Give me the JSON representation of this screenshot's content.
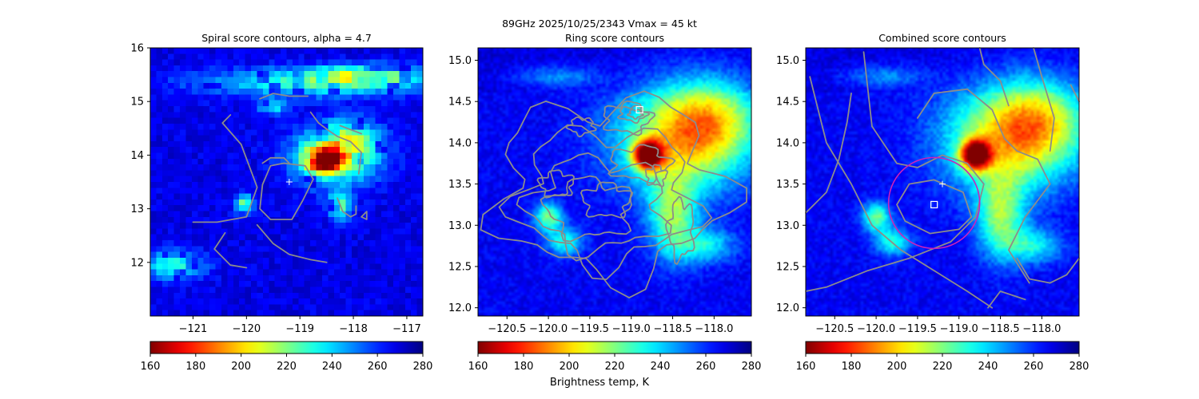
{
  "figure": {
    "suptitle": "89GHz  2025/10/25/2343    Vmax = 45 kt",
    "colorbar_label": "Brightness temp, K"
  },
  "colors": {
    "contour": "#8c8c8c",
    "center_marker": "#ffffff",
    "circle": "#cc22bb"
  },
  "chart_data": [
    {
      "type": "heatmap",
      "title": "Spiral score contours, alpha =  4.7",
      "xlim": [
        -121.8,
        -116.7
      ],
      "ylim": [
        11.0,
        16.0
      ],
      "xticks": [
        "−121",
        "−120",
        "−119",
        "−118",
        "−117"
      ],
      "xtick_values": [
        -121,
        -120,
        -119,
        -118,
        -117
      ],
      "yticks": [
        "12",
        "13",
        "14",
        "15",
        "16"
      ],
      "ytick_values": [
        12,
        13,
        14,
        15,
        16
      ],
      "grid": false,
      "colormap": "jet_r",
      "clim": [
        160,
        280
      ],
      "pixelated": true,
      "features": [
        {
          "x": -118.55,
          "y": 13.9,
          "sx": 0.22,
          "sy": 0.14,
          "amp": 95
        },
        {
          "x": -118.35,
          "y": 13.95,
          "sx": 0.55,
          "sy": 0.35,
          "amp": 55
        },
        {
          "x": -118.1,
          "y": 14.3,
          "sx": 0.4,
          "sy": 0.25,
          "amp": 35
        },
        {
          "x": -118.65,
          "y": 15.35,
          "sx": 1.5,
          "sy": 0.18,
          "amp": 40
        },
        {
          "x": -117.8,
          "y": 15.5,
          "sx": 0.7,
          "sy": 0.12,
          "amp": 40
        },
        {
          "x": -118.25,
          "y": 13.05,
          "sx": 0.15,
          "sy": 0.18,
          "amp": 45
        },
        {
          "x": -120.05,
          "y": 13.1,
          "sx": 0.12,
          "sy": 0.12,
          "amp": 45
        },
        {
          "x": -121.35,
          "y": 11.95,
          "sx": 0.4,
          "sy": 0.18,
          "amp": 40
        },
        {
          "x": -119.5,
          "y": 14.9,
          "sx": 0.2,
          "sy": 0.1,
          "amp": 30
        }
      ],
      "background_k": 268,
      "center_marker": {
        "x": -119.2,
        "y": 13.5
      },
      "contours": [
        [
          [
            -120.3,
            14.75
          ],
          [
            -120.45,
            14.6
          ],
          [
            -120.1,
            14.2
          ],
          [
            -119.8,
            13.4
          ],
          [
            -120.0,
            12.85
          ],
          [
            -120.55,
            12.75
          ],
          [
            -121.0,
            12.75
          ]
        ],
        [
          [
            -119.3,
            13.85
          ],
          [
            -118.9,
            13.8
          ],
          [
            -118.75,
            13.55
          ],
          [
            -118.95,
            13.15
          ],
          [
            -119.15,
            12.8
          ],
          [
            -119.55,
            12.8
          ],
          [
            -119.75,
            13.0
          ],
          [
            -119.7,
            13.45
          ],
          [
            -119.55,
            13.8
          ],
          [
            -119.3,
            13.85
          ]
        ],
        [
          [
            -119.7,
            13.85
          ],
          [
            -119.55,
            13.95
          ],
          [
            -119.3,
            13.95
          ],
          [
            -119.2,
            13.85
          ]
        ],
        [
          [
            -119.8,
            12.7
          ],
          [
            -119.5,
            12.35
          ],
          [
            -119.2,
            12.15
          ],
          [
            -118.8,
            12.05
          ],
          [
            -118.5,
            12.0
          ]
        ],
        [
          [
            -120.4,
            12.55
          ],
          [
            -120.6,
            12.25
          ],
          [
            -120.3,
            11.95
          ],
          [
            -120.0,
            11.9
          ]
        ],
        [
          [
            -119.75,
            15.05
          ],
          [
            -119.5,
            15.15
          ],
          [
            -119.2,
            15.1
          ],
          [
            -118.85,
            15.1
          ]
        ],
        [
          [
            -118.8,
            14.8
          ],
          [
            -118.65,
            14.6
          ],
          [
            -118.45,
            14.45
          ],
          [
            -118.3,
            14.35
          ],
          [
            -118.05,
            14.25
          ],
          [
            -117.85,
            14.05
          ],
          [
            -117.9,
            13.65
          ]
        ],
        [
          [
            -118.25,
            14.55
          ],
          [
            -117.85,
            14.4
          ]
        ],
        [
          [
            -118.3,
            13.2
          ],
          [
            -118.2,
            12.95
          ],
          [
            -118.05,
            12.85
          ],
          [
            -117.95,
            12.9
          ],
          [
            -117.95,
            13.05
          ]
        ],
        [
          [
            -117.85,
            12.85
          ],
          [
            -117.75,
            12.8
          ],
          [
            -117.75,
            12.95
          ],
          [
            -117.85,
            12.85
          ]
        ]
      ]
    },
    {
      "type": "heatmap",
      "title": "Ring score contours",
      "xlim": [
        -120.85,
        -117.55
      ],
      "ylim": [
        11.9,
        15.15
      ],
      "xticks": [
        "−120.5",
        "−120.0",
        "−119.5",
        "−119.0",
        "−118.5",
        "−118.0"
      ],
      "xtick_values": [
        -120.5,
        -120.0,
        -119.5,
        -119.0,
        -118.5,
        -118.0
      ],
      "yticks": [
        "12.0",
        "12.5",
        "13.0",
        "13.5",
        "14.0",
        "14.5",
        "15.0"
      ],
      "ytick_values": [
        12.0,
        12.5,
        13.0,
        13.5,
        14.0,
        14.5,
        15.0
      ],
      "grid": false,
      "colormap": "jet_r",
      "clim": [
        160,
        280
      ],
      "pixelated": false,
      "features": [
        {
          "x": -118.8,
          "y": 13.85,
          "sx": 0.12,
          "sy": 0.12,
          "amp": 105
        },
        {
          "x": -118.4,
          "y": 14.05,
          "sx": 0.55,
          "sy": 0.45,
          "amp": 60
        },
        {
          "x": -118.0,
          "y": 14.3,
          "sx": 0.4,
          "sy": 0.35,
          "amp": 35
        },
        {
          "x": -118.5,
          "y": 13.1,
          "sx": 0.2,
          "sy": 0.35,
          "amp": 45
        },
        {
          "x": -120.0,
          "y": 13.1,
          "sx": 0.12,
          "sy": 0.12,
          "amp": 45
        },
        {
          "x": -119.8,
          "y": 12.8,
          "sx": 0.15,
          "sy": 0.12,
          "amp": 35
        },
        {
          "x": -119.9,
          "y": 14.8,
          "sx": 0.35,
          "sy": 0.1,
          "amp": 20
        },
        {
          "x": -118.1,
          "y": 12.75,
          "sx": 0.25,
          "sy": 0.15,
          "amp": 30
        }
      ],
      "background_k": 266,
      "center_marker": null,
      "square_marker": {
        "x": -118.9,
        "y": 14.4
      },
      "contour_rings": [
        {
          "cx": -118.95,
          "cy": 14.35,
          "rx": 0.08,
          "ry": 0.05
        },
        {
          "cx": -118.98,
          "cy": 14.35,
          "rx": 0.16,
          "ry": 0.09
        },
        {
          "cx": -119.05,
          "cy": 14.3,
          "rx": 0.28,
          "ry": 0.18
        },
        {
          "cx": -119.3,
          "cy": 13.3,
          "rx": 0.28,
          "ry": 0.2
        },
        {
          "cx": -119.5,
          "cy": 13.2,
          "rx": 0.5,
          "ry": 0.35
        },
        {
          "cx": -119.4,
          "cy": 13.25,
          "rx": 0.8,
          "ry": 0.55
        },
        {
          "cx": -119.3,
          "cy": 13.35,
          "rx": 1.05,
          "ry": 0.8
        },
        {
          "cx": -119.25,
          "cy": 13.45,
          "rx": 1.35,
          "ry": 1.05
        },
        {
          "cx": -118.9,
          "cy": 13.75,
          "rx": 0.35,
          "ry": 0.2
        },
        {
          "cx": -118.7,
          "cy": 13.6,
          "rx": 0.12,
          "ry": 0.12
        },
        {
          "cx": -119.9,
          "cy": 13.5,
          "rx": 0.2,
          "ry": 0.15
        },
        {
          "cx": -118.4,
          "cy": 12.95,
          "rx": 0.15,
          "ry": 0.35
        },
        {
          "cx": -119.6,
          "cy": 14.2,
          "rx": 0.15,
          "ry": 0.1
        }
      ]
    },
    {
      "type": "heatmap",
      "title": "Combined score contours",
      "xlim": [
        -120.85,
        -117.55
      ],
      "ylim": [
        11.9,
        15.15
      ],
      "xticks": [
        "−120.5",
        "−120.0",
        "−119.5",
        "−119.0",
        "−118.5",
        "−118.0"
      ],
      "xtick_values": [
        -120.5,
        -120.0,
        -119.5,
        -119.0,
        -118.5,
        -118.0
      ],
      "yticks": [
        "12.0",
        "12.5",
        "13.0",
        "13.5",
        "14.0",
        "14.5",
        "15.0"
      ],
      "ytick_values": [
        12.0,
        12.5,
        13.0,
        13.5,
        14.0,
        14.5,
        15.0
      ],
      "grid": false,
      "colormap": "jet_r",
      "clim": [
        160,
        280
      ],
      "pixelated": false,
      "features": [
        {
          "x": -118.8,
          "y": 13.85,
          "sx": 0.12,
          "sy": 0.12,
          "amp": 105
        },
        {
          "x": -118.4,
          "y": 14.05,
          "sx": 0.55,
          "sy": 0.45,
          "amp": 60
        },
        {
          "x": -118.0,
          "y": 14.3,
          "sx": 0.4,
          "sy": 0.35,
          "amp": 35
        },
        {
          "x": -118.5,
          "y": 13.1,
          "sx": 0.2,
          "sy": 0.35,
          "amp": 45
        },
        {
          "x": -120.0,
          "y": 13.1,
          "sx": 0.12,
          "sy": 0.12,
          "amp": 45
        },
        {
          "x": -119.8,
          "y": 12.8,
          "sx": 0.15,
          "sy": 0.12,
          "amp": 35
        },
        {
          "x": -119.9,
          "y": 14.8,
          "sx": 0.35,
          "sy": 0.1,
          "amp": 20
        },
        {
          "x": -118.1,
          "y": 12.75,
          "sx": 0.25,
          "sy": 0.15,
          "amp": 30
        }
      ],
      "background_k": 266,
      "center_marker": {
        "x": -119.2,
        "y": 13.5
      },
      "square_marker": {
        "x": -119.3,
        "y": 13.25
      },
      "circle": {
        "cx": -119.3,
        "cy": 13.27,
        "r_deg": 0.55
      },
      "contours": [
        [
          [
            -119.3,
            13.55
          ],
          [
            -118.95,
            13.4
          ],
          [
            -118.85,
            13.1
          ],
          [
            -119.0,
            12.95
          ],
          [
            -119.35,
            12.9
          ],
          [
            -119.65,
            13.05
          ],
          [
            -119.75,
            13.25
          ],
          [
            -119.6,
            13.5
          ],
          [
            -119.3,
            13.55
          ]
        ],
        [
          [
            -120.8,
            14.8
          ],
          [
            -120.6,
            14.0
          ],
          [
            -120.3,
            13.5
          ],
          [
            -120.05,
            13.0
          ],
          [
            -119.7,
            12.7
          ],
          [
            -119.3,
            12.45
          ],
          [
            -118.9,
            12.2
          ],
          [
            -118.6,
            12.0
          ]
        ],
        [
          [
            -120.15,
            15.1
          ],
          [
            -120.05,
            14.2
          ],
          [
            -119.75,
            13.75
          ],
          [
            -119.5,
            13.7
          ],
          [
            -119.2,
            13.85
          ],
          [
            -118.9,
            13.75
          ],
          [
            -118.7,
            13.5
          ],
          [
            -118.8,
            13.1
          ],
          [
            -119.1,
            12.8
          ],
          [
            -119.6,
            12.6
          ],
          [
            -120.1,
            12.45
          ],
          [
            -120.6,
            12.25
          ],
          [
            -120.85,
            12.2
          ]
        ],
        [
          [
            -119.5,
            14.3
          ],
          [
            -119.3,
            14.6
          ],
          [
            -118.9,
            14.65
          ],
          [
            -118.6,
            14.4
          ],
          [
            -118.45,
            14.05
          ],
          [
            -118.3,
            13.9
          ],
          [
            -118.05,
            13.8
          ],
          [
            -117.9,
            13.5
          ],
          [
            -118.2,
            13.1
          ],
          [
            -118.4,
            12.7
          ],
          [
            -118.15,
            12.3
          ]
        ],
        [
          [
            -118.1,
            15.15
          ],
          [
            -118.0,
            14.8
          ],
          [
            -117.85,
            14.3
          ],
          [
            -117.9,
            13.9
          ]
        ],
        [
          [
            -117.65,
            14.7
          ],
          [
            -117.55,
            14.5
          ]
        ],
        [
          [
            -118.75,
            15.15
          ],
          [
            -118.7,
            14.95
          ],
          [
            -118.5,
            14.75
          ],
          [
            -118.4,
            14.45
          ]
        ],
        [
          [
            -120.85,
            13.15
          ],
          [
            -120.6,
            13.4
          ],
          [
            -120.45,
            13.8
          ],
          [
            -120.35,
            14.25
          ],
          [
            -120.3,
            14.6
          ]
        ],
        [
          [
            -118.3,
            12.6
          ],
          [
            -118.15,
            12.35
          ],
          [
            -117.9,
            12.3
          ],
          [
            -117.7,
            12.4
          ],
          [
            -117.55,
            12.6
          ]
        ],
        [
          [
            -118.65,
            12.0
          ],
          [
            -118.5,
            12.2
          ],
          [
            -118.2,
            12.1
          ]
        ]
      ]
    }
  ],
  "colorbar": {
    "ticks": [
      "160",
      "180",
      "200",
      "220",
      "240",
      "260",
      "280"
    ],
    "tick_values": [
      160,
      180,
      200,
      220,
      240,
      260,
      280
    ],
    "range": [
      160,
      280
    ]
  }
}
